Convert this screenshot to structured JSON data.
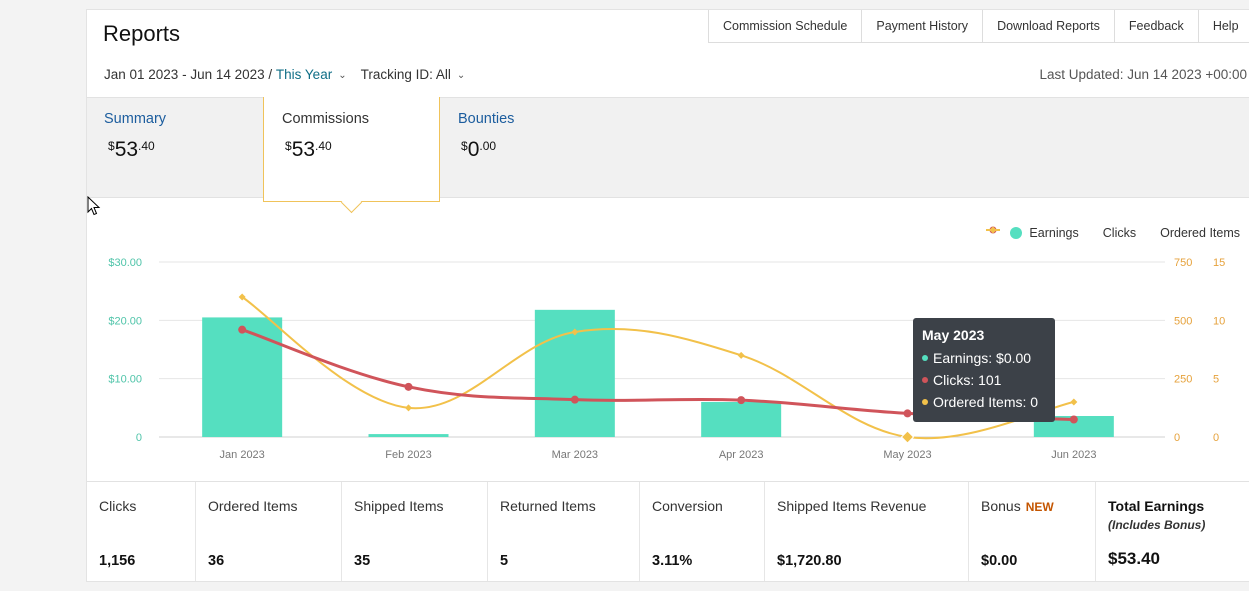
{
  "header": {
    "title": "Reports",
    "nav": [
      "Commission Schedule",
      "Payment History",
      "Download Reports",
      "Feedback",
      "Help"
    ],
    "date_range": "Jan 01 2023 - Jun 14 2023 /",
    "period": "This Year",
    "tracking_id": "Tracking ID: All",
    "last_updated": "Last Updated: Jun 14 2023 +00:00"
  },
  "tabs": {
    "summary": {
      "label": "Summary",
      "currency": "$",
      "dollars": "53",
      "cents": ".40"
    },
    "commissions": {
      "label": "Commissions",
      "currency": "$",
      "dollars": "53",
      "cents": ".40"
    },
    "bounties": {
      "label": "Bounties",
      "currency": "$",
      "dollars": "0",
      "cents": ".00"
    }
  },
  "legend": {
    "earnings": "Earnings",
    "clicks": "Clicks",
    "ordered_items": "Ordered Items"
  },
  "tooltip": {
    "title": "May 2023",
    "earnings": "Earnings: $0.00",
    "clicks": "Clicks: 101",
    "ordered_items": "Ordered Items: 0"
  },
  "chart_data": {
    "type": "bar",
    "categories": [
      "Jan 2023",
      "Feb 2023",
      "Mar 2023",
      "Apr 2023",
      "May 2023",
      "Jun 2023"
    ],
    "series": [
      {
        "name": "Earnings",
        "type": "bar",
        "axis": "left",
        "color": "#55dfc0",
        "values": [
          20.5,
          0.5,
          21.8,
          6.0,
          0.0,
          3.6
        ]
      },
      {
        "name": "Clicks",
        "type": "line",
        "axis": "right1",
        "color": "#d0545a",
        "values": [
          460,
          215,
          160,
          158,
          101,
          75
        ]
      },
      {
        "name": "Ordered Items",
        "type": "line",
        "axis": "right2",
        "color": "#f2c14a",
        "values": [
          12,
          2.5,
          9,
          7,
          0,
          3
        ]
      }
    ],
    "y_left": {
      "ticks": [
        "$30.00",
        "$20.00",
        "$10.00",
        "0"
      ],
      "ylim": [
        0,
        30
      ]
    },
    "y_right1": {
      "ticks": [
        "750",
        "500",
        "250",
        "0"
      ],
      "ylim": [
        0,
        750
      ]
    },
    "y_right2": {
      "ticks": [
        "15",
        "10",
        "5",
        "0"
      ],
      "ylim": [
        0,
        15
      ]
    },
    "grid": true,
    "legend_position": "top-right"
  },
  "stats": [
    {
      "label": "Clicks",
      "value": "1,156"
    },
    {
      "label": "Ordered Items",
      "value": "36"
    },
    {
      "label": "Shipped Items",
      "value": "35"
    },
    {
      "label": "Returned Items",
      "value": "5"
    },
    {
      "label": "Conversion",
      "value": "3.11%"
    },
    {
      "label": "Shipped Items Revenue",
      "value": "$1,720.80"
    },
    {
      "label": "Bonus",
      "badge": "NEW",
      "value": "$0.00"
    },
    {
      "label": "Total Earnings",
      "sublabel": "(Includes Bonus)",
      "value": "$53.40"
    }
  ]
}
